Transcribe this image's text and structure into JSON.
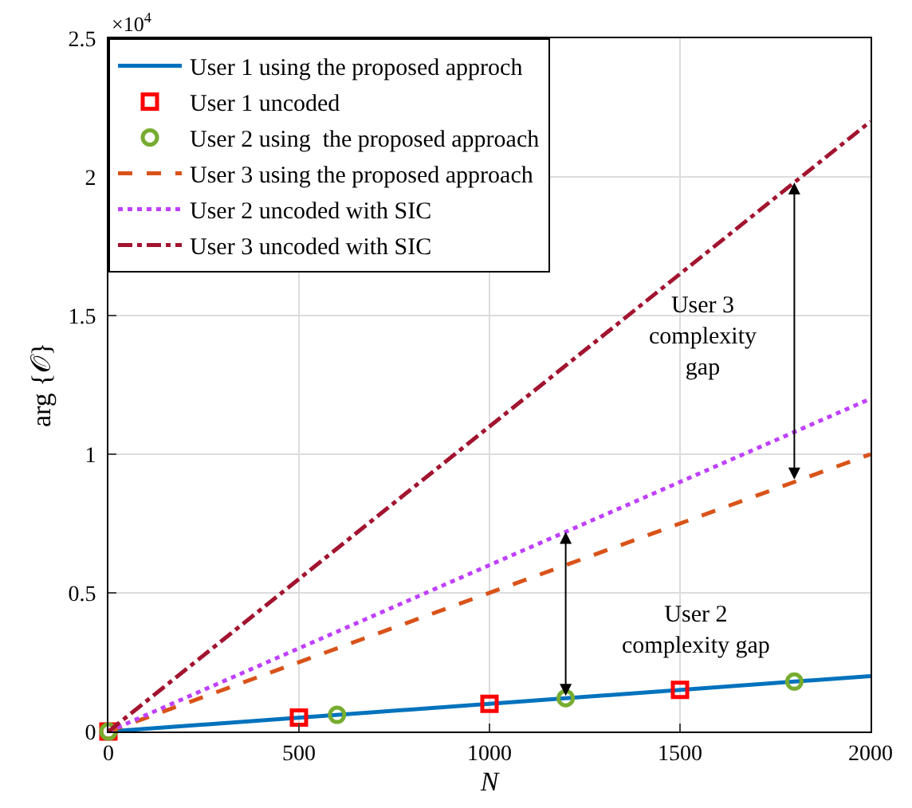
{
  "chart_data": {
    "type": "line",
    "xlabel": "N",
    "ylabel": "arg {𝒪}",
    "xlim": [
      0,
      2000
    ],
    "xticks": [
      0,
      500,
      1000,
      1500,
      2000
    ],
    "ylim": [
      0,
      2.5
    ],
    "yticks": [
      0,
      0.5,
      1,
      1.5,
      2,
      2.5
    ],
    "grid": true,
    "legend": "top left",
    "series": [
      {
        "name": "User 1 using the proposed approch",
        "color": "#0072bd",
        "x": [
          0,
          2000
        ],
        "values": [
          0,
          0.2
        ],
        "line_style": "solid",
        "marker": "none"
      },
      {
        "name": "User 1 uncoded",
        "type": "scatter",
        "color": "#ff0000",
        "x": [
          0,
          500,
          1000,
          1500
        ],
        "values": [
          0,
          0.05,
          0.1,
          0.15
        ],
        "marker": "square"
      },
      {
        "name": "User 2 using  the proposed approach",
        "type": "scatter",
        "color": "#77ac30",
        "x": [
          0,
          600,
          1200,
          1800
        ],
        "values": [
          0,
          0.06,
          0.12,
          0.18
        ],
        "marker": "circle"
      },
      {
        "name": "User 3 using the proposed approach",
        "color": "#d95319",
        "x": [
          0,
          2000
        ],
        "values": [
          0,
          1.0
        ],
        "line_style": "dashed",
        "marker": "none"
      },
      {
        "name": "User 2 uncoded with SIC",
        "color": "#bf40ff",
        "x": [
          0,
          2000
        ],
        "values": [
          0,
          1.2
        ],
        "line_style": "dotted",
        "marker": "none"
      },
      {
        "name": "User 3 uncoded with SIC",
        "color": "#a2142f",
        "x": [
          0,
          2000
        ],
        "values": [
          0,
          2.2
        ],
        "line_style": "dashdot",
        "marker": "none"
      }
    ],
    "annotations": [
      "×10$^{4}$",
      "User 3\ncomplexity\ngap",
      "User 2\ncomplexity gap"
    ]
  }
}
